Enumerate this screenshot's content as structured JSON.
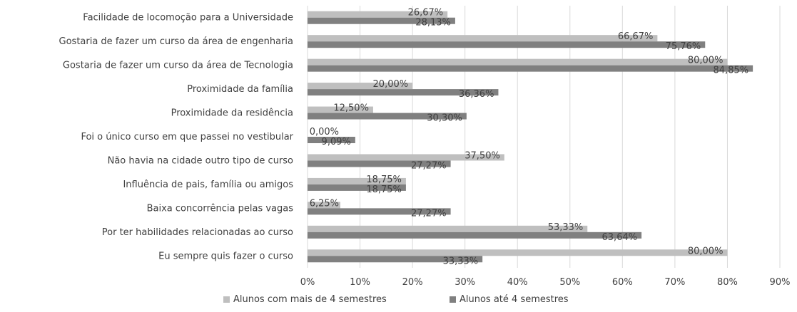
{
  "chart_data": {
    "type": "bar",
    "orientation": "horizontal",
    "categories": [
      "Facilidade de locomoção para a Universidade",
      "Gostaria de fazer um curso da área de engenharia",
      "Gostaria de fazer um curso da área de Tecnologia",
      "Proximidade da família",
      "Proximidade da residência",
      "Foi o único curso em que passei no vestibular",
      "Não havia na cidade outro tipo de curso",
      "Influência de pais, família ou amigos",
      "Baixa concorrência pelas vagas",
      "Por ter habilidades relacionadas ao curso",
      "Eu sempre quis fazer o curso"
    ],
    "series": [
      {
        "name": "Alunos com mais de 4 semestres",
        "color": "#bfbfbf",
        "values": [
          26.67,
          66.67,
          80.0,
          20.0,
          12.5,
          0.0,
          37.5,
          18.75,
          6.25,
          53.33,
          80.0
        ],
        "labels": [
          "26,67%",
          "66,67%",
          "80,00%",
          "20,00%",
          "12,50%",
          "0,00%",
          "37,50%",
          "18,75%",
          "6,25%",
          "53,33%",
          "80,00%"
        ]
      },
      {
        "name": "Alunos até 4 semestres",
        "color": "#808080",
        "values": [
          28.13,
          75.76,
          84.85,
          36.36,
          30.3,
          9.09,
          27.27,
          18.75,
          27.27,
          63.64,
          33.33
        ],
        "labels": [
          "28,13%",
          "75,76%",
          "84,85%",
          "36,36%",
          "30,30%",
          "9,09%",
          "27,27%",
          "18,75%",
          "27,27%",
          "63,64%",
          "33,33%"
        ]
      }
    ],
    "xlim": [
      0,
      90
    ],
    "ticks": [
      0,
      10,
      20,
      30,
      40,
      50,
      60,
      70,
      80,
      90
    ],
    "tick_labels": [
      "0%",
      "10%",
      "20%",
      "30%",
      "40%",
      "50%",
      "60%",
      "70%",
      "80%",
      "90%"
    ],
    "title": "",
    "xlabel": "",
    "ylabel": "",
    "grid": true,
    "legend_position": "bottom"
  }
}
